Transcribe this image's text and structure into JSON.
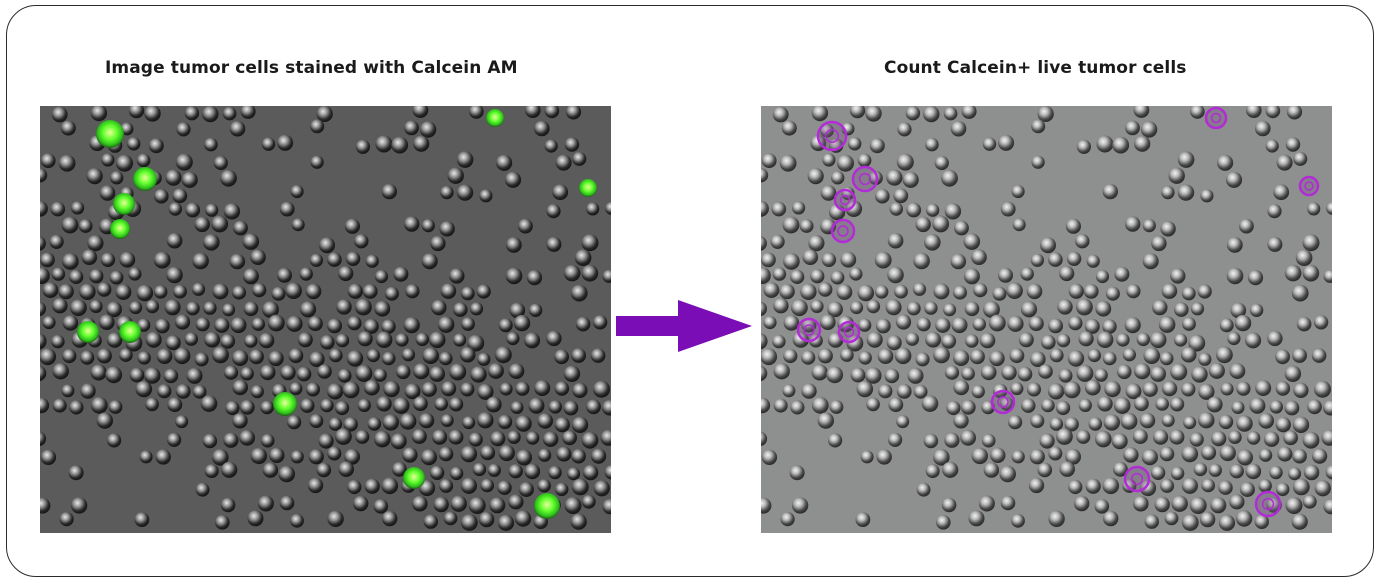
{
  "panels": {
    "left": {
      "title": "Image tumor cells stained with Calcein AM",
      "background_color": "#5b5b5b",
      "cell_color": "#2a2a2a",
      "live_cell_color": "#63ff2e"
    },
    "right": {
      "title": "Count Calcein+ live tumor cells",
      "background_color": "#8e8f8f",
      "cell_color": "#3a3a3a",
      "outline_color": "#b22bd6"
    }
  },
  "arrow": {
    "icon": "right-arrow-icon",
    "color": "#7a0db5"
  },
  "frame": {
    "border_color": "#2b2b2b"
  }
}
